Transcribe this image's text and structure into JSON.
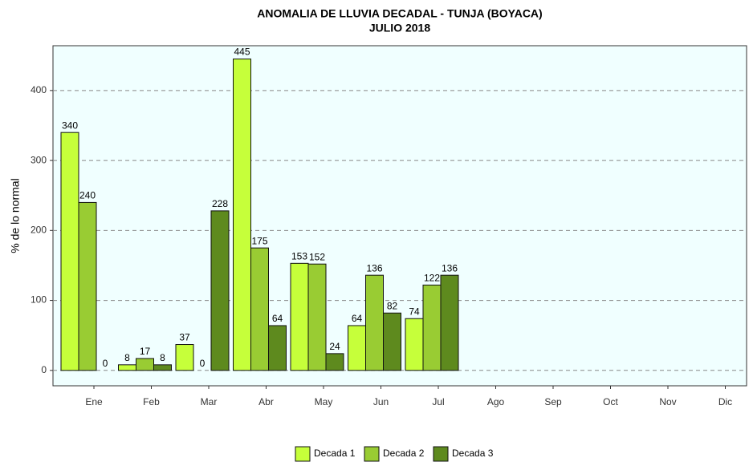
{
  "chart_data": {
    "type": "bar",
    "title": "ANOMALIA DE LLUVIA DECADAL - TUNJA  (BOYACA)",
    "subtitle": "JULIO 2018",
    "y_label": "% de lo normal",
    "categories": [
      "Ene",
      "Feb",
      "Mar",
      "Abr",
      "May",
      "Jun",
      "Jul",
      "Ago",
      "Sep",
      "Oct",
      "Nov",
      "Dic"
    ],
    "series": [
      {
        "name": "Decada 1",
        "color": "#c6ff3a",
        "values": [
          340,
          8,
          37,
          445,
          153,
          64,
          74,
          null,
          null,
          null,
          null,
          null
        ]
      },
      {
        "name": "Decada 2",
        "color": "#99cc33",
        "values": [
          240,
          17,
          0,
          175,
          152,
          136,
          122,
          null,
          null,
          null,
          null,
          null
        ]
      },
      {
        "name": "Decada 3",
        "color": "#5e8a1e",
        "values": [
          0,
          8,
          228,
          64,
          24,
          82,
          136,
          null,
          null,
          null,
          null,
          null
        ]
      }
    ],
    "ylim": [
      -22,
      464
    ],
    "yticks": [
      0,
      100,
      200,
      300,
      400
    ],
    "grid": true,
    "legend": "bottom"
  }
}
